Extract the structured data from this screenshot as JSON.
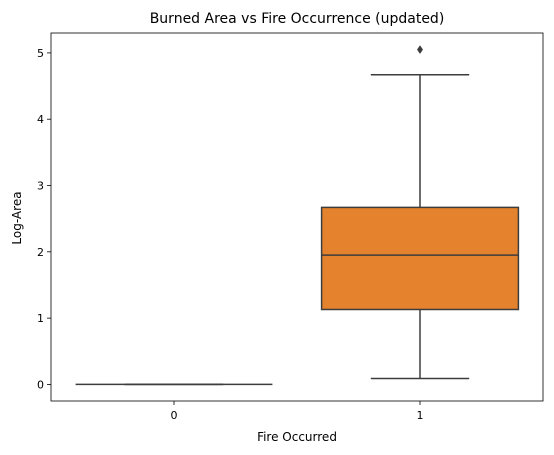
{
  "chart_data": {
    "type": "box",
    "title": "Burned Area vs Fire Occurrence (updated)",
    "xlabel": "Fire Occurred",
    "ylabel": "Log-Area",
    "categories": [
      "0",
      "1"
    ],
    "ylim": [
      -0.25,
      5.3
    ],
    "yticks": [
      0,
      1,
      2,
      3,
      4,
      5
    ],
    "grid": false,
    "boxes": [
      {
        "category": "0",
        "whisker_low": 0,
        "q1": 0,
        "median": 0,
        "q3": 0,
        "whisker_high": 0,
        "outliers": [],
        "color": "#1f77b4"
      },
      {
        "category": "1",
        "whisker_low": 0.09,
        "q1": 1.13,
        "median": 1.95,
        "q3": 2.67,
        "whisker_high": 4.67,
        "outliers": [
          5.05
        ],
        "color": "#e5822d"
      }
    ]
  }
}
